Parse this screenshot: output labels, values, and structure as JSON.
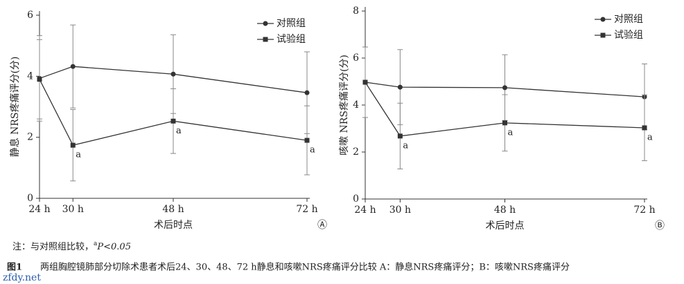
{
  "chart_data": [
    {
      "type": "line",
      "panel_label": "Ⓐ",
      "ylabel": "静息 NRS疼痛评分(分)",
      "xlabel": "术后时点",
      "x": [
        24,
        30,
        48,
        72
      ],
      "xlim": [
        24,
        72
      ],
      "xticks": [
        {
          "value": 24,
          "label": "24 h"
        },
        {
          "value": 30,
          "label": "30 h"
        },
        {
          "value": 48,
          "label": "48 h"
        },
        {
          "value": 72,
          "label": "72 h"
        }
      ],
      "ylim": [
        0,
        6
      ],
      "yticks": [
        0,
        2,
        4,
        6
      ],
      "legend": "upper right",
      "series": [
        {
          "name": "对照组",
          "color": "#333333",
          "marker": "circle",
          "values": [
            3.93,
            4.32,
            4.07,
            3.46
          ],
          "errors": [
            1.4,
            1.36,
            1.29,
            1.34
          ],
          "annotations": [
            null,
            null,
            null,
            null
          ]
        },
        {
          "name": "试验组",
          "color": "#333333",
          "marker": "square",
          "values": [
            3.9,
            1.74,
            2.53,
            1.9
          ],
          "errors": [
            1.3,
            1.17,
            1.06,
            1.13
          ],
          "annotations": [
            null,
            "a",
            "a",
            "a"
          ]
        }
      ]
    },
    {
      "type": "line",
      "panel_label": "Ⓑ",
      "ylabel": "咳嗽 NRS疼痛评分(分)",
      "xlabel": "术后时点",
      "x": [
        24,
        30,
        48,
        72
      ],
      "xlim": [
        24,
        72
      ],
      "xticks": [
        {
          "value": 24,
          "label": "24 h"
        },
        {
          "value": 30,
          "label": "30 h"
        },
        {
          "value": 48,
          "label": "48 h"
        },
        {
          "value": 72,
          "label": "72 h"
        }
      ],
      "ylim": [
        0,
        8
      ],
      "yticks": [
        0,
        2,
        4,
        6,
        8
      ],
      "legend": "upper right",
      "series": [
        {
          "name": "对照组",
          "color": "#333333",
          "marker": "circle",
          "values": [
            4.97,
            4.76,
            4.74,
            4.35
          ],
          "errors": [
            1.5,
            1.6,
            1.4,
            1.4
          ],
          "annotations": [
            null,
            null,
            null,
            null
          ]
        },
        {
          "name": "试验组",
          "color": "#333333",
          "marker": "square",
          "values": [
            4.97,
            2.68,
            3.24,
            3.03
          ],
          "errors": [
            1.5,
            1.4,
            1.2,
            1.4
          ],
          "annotations": [
            null,
            "a",
            "a",
            "a"
          ]
        }
      ]
    }
  ],
  "note": {
    "prefix": "注：与对照组比较，",
    "sup": "a",
    "suffix": "P<0.05"
  },
  "caption": {
    "label": "图1",
    "text": "两组胸腔镜肺部分切除术患者术后24、30、48、72 h静息和咳嗽NRS疼痛评分比较 A：静息NRS疼痛评分；B：咳嗽NRS疼痛评分"
  },
  "watermark": "zfdy.net"
}
